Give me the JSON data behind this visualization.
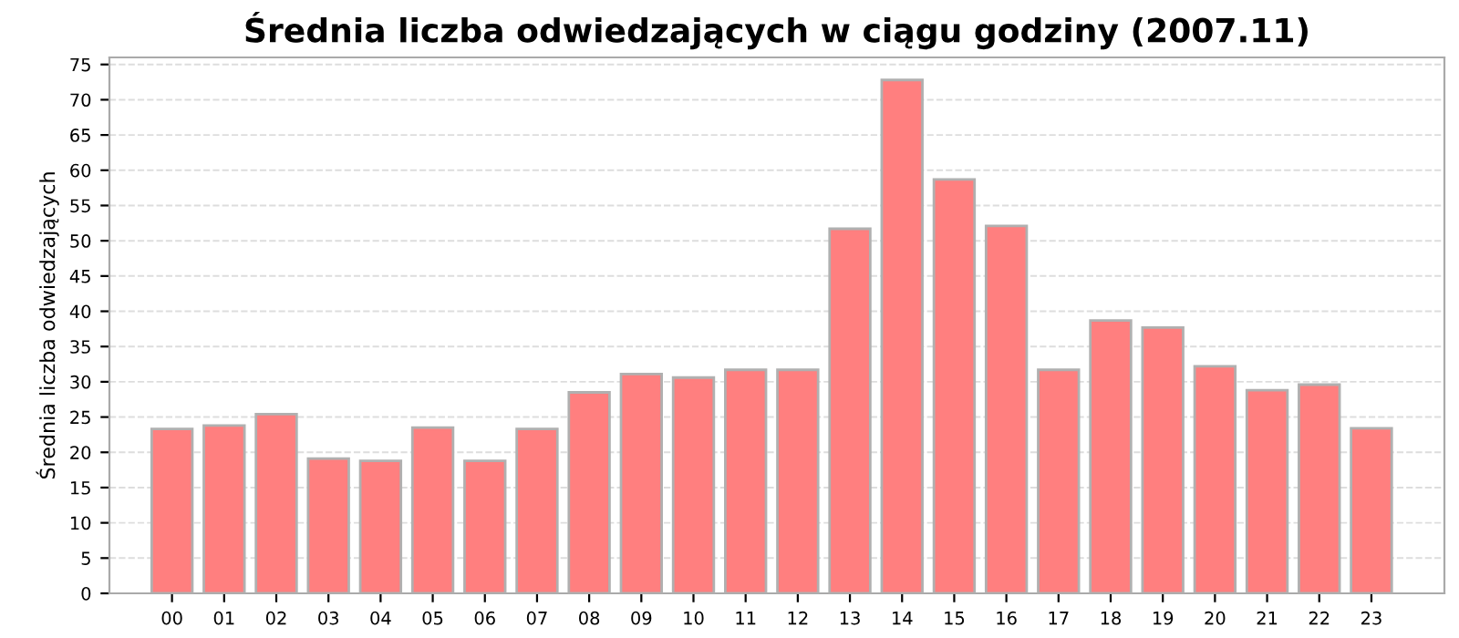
{
  "chart_data": {
    "type": "bar",
    "title": "Średnia liczba odwiedzających w ciągu godziny (2007.11)",
    "ylabel": "Średnia liczba odwiedzających",
    "categories": [
      "00",
      "01",
      "02",
      "03",
      "04",
      "05",
      "06",
      "07",
      "08",
      "09",
      "10",
      "11",
      "12",
      "13",
      "14",
      "15",
      "16",
      "17",
      "18",
      "19",
      "20",
      "21",
      "22",
      "23"
    ],
    "values": [
      23.3,
      23.8,
      25.4,
      19.1,
      18.8,
      23.5,
      18.8,
      23.3,
      28.5,
      31.1,
      30.6,
      31.7,
      31.7,
      51.7,
      72.8,
      58.7,
      52.1,
      31.7,
      38.7,
      37.7,
      32.2,
      28.8,
      29.6,
      23.4
    ],
    "color": "#ff7f7f",
    "ylim": [
      0,
      76
    ],
    "yticks": [
      0,
      5,
      10,
      15,
      20,
      25,
      30,
      35,
      40,
      45,
      50,
      55,
      60,
      65,
      70,
      75
    ],
    "grid": "y"
  }
}
